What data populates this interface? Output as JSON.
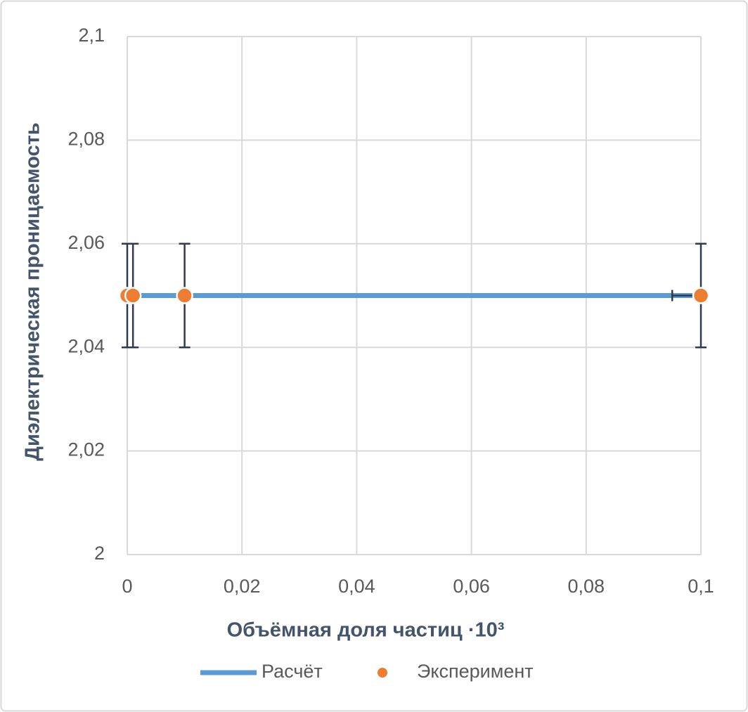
{
  "chart_data": {
    "type": "scatter",
    "x_label": "Объёмная доля частиц ·10³",
    "y_label": "Диэлектрическая проницаемость",
    "xlim": [
      0,
      0.1
    ],
    "xticks": [
      0,
      {
        "value": 0.02,
        "label": "0,02"
      },
      {
        "value": 0.04,
        "label": "0,04"
      },
      {
        "value": 0.06,
        "label": "0,06"
      },
      {
        "value": 0.08,
        "label": "0,08"
      },
      {
        "value": 0.1,
        "label": "0,1"
      }
    ],
    "ylim": [
      2,
      2.1
    ],
    "yticks": [
      2,
      {
        "value": 2.02,
        "label": "2,02"
      },
      {
        "value": 2.04,
        "label": "2,04"
      },
      {
        "value": 2.06,
        "label": "2,06"
      },
      {
        "value": 2.08,
        "label": "2,08"
      },
      {
        "value": 2.1,
        "label": "2,1"
      }
    ],
    "grid": true,
    "legend": "bottom",
    "series": [
      {
        "name": "Расчёт",
        "kind": "line",
        "color": "#5b9bd5",
        "x": [
          0,
          0.1
        ],
        "values": [
          2.05,
          2.05
        ]
      },
      {
        "name": "Эксперимент",
        "kind": "points",
        "color": "#ed7d31",
        "error_color": "#2f3b4c",
        "x": [
          0,
          0.001,
          0.01,
          0.1
        ],
        "values": [
          2.05,
          2.05,
          2.05,
          2.05
        ],
        "yerr": [
          0.01,
          0.01,
          0.01,
          0.01
        ],
        "xerr": [
          0,
          0,
          0,
          0.005
        ]
      }
    ]
  }
}
